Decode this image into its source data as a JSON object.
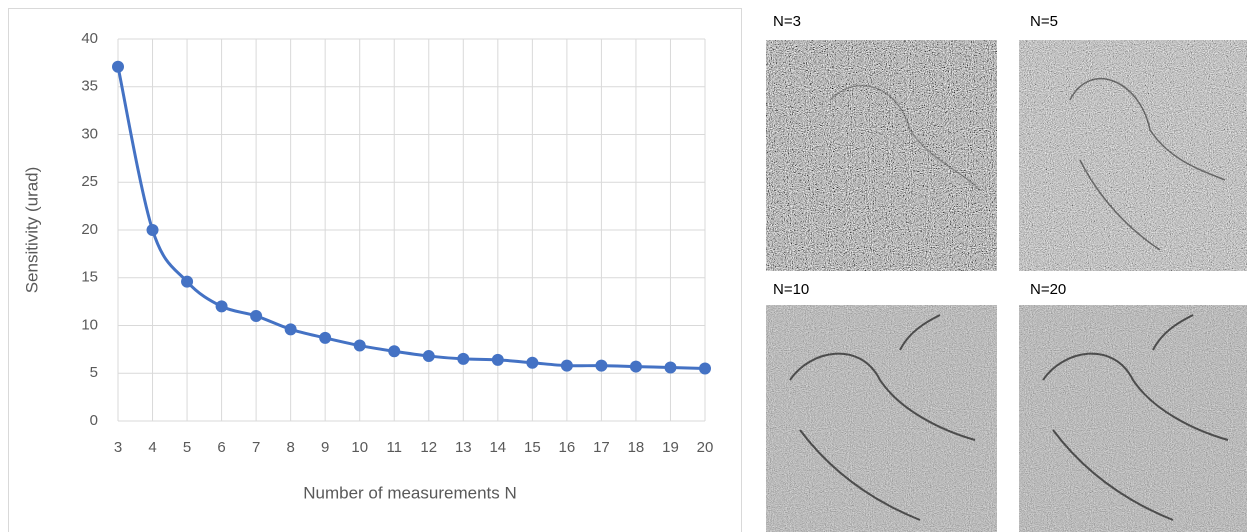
{
  "chart_data": {
    "type": "line",
    "x_label": "Number of measurements N",
    "y_label": "Sensitivity (urad)",
    "x": [
      3,
      4,
      5,
      6,
      7,
      8,
      9,
      10,
      11,
      12,
      13,
      14,
      15,
      16,
      17,
      18,
      19,
      20
    ],
    "series": [
      {
        "color": "#4472c4",
        "values": [
          37.1,
          20,
          14.6,
          12,
          11,
          9.6,
          8.7,
          7.9,
          7.3,
          6.8,
          6.5,
          6.4,
          6.1,
          5.8,
          5.8,
          5.7,
          5.6,
          5.5
        ]
      }
    ],
    "xlim": [
      3,
      20
    ],
    "xticks": [
      3,
      4,
      5,
      6,
      7,
      8,
      9,
      10,
      11,
      12,
      13,
      14,
      15,
      16,
      17,
      18,
      19,
      20
    ],
    "ylim": [
      0,
      40
    ],
    "yticks": [
      0,
      5,
      10,
      15,
      20,
      25,
      30,
      35,
      40
    ],
    "grid": true
  },
  "panels": [
    {
      "label": "N=3"
    },
    {
      "label": "N=5"
    },
    {
      "label": "N=10"
    },
    {
      "label": "N=20"
    }
  ]
}
